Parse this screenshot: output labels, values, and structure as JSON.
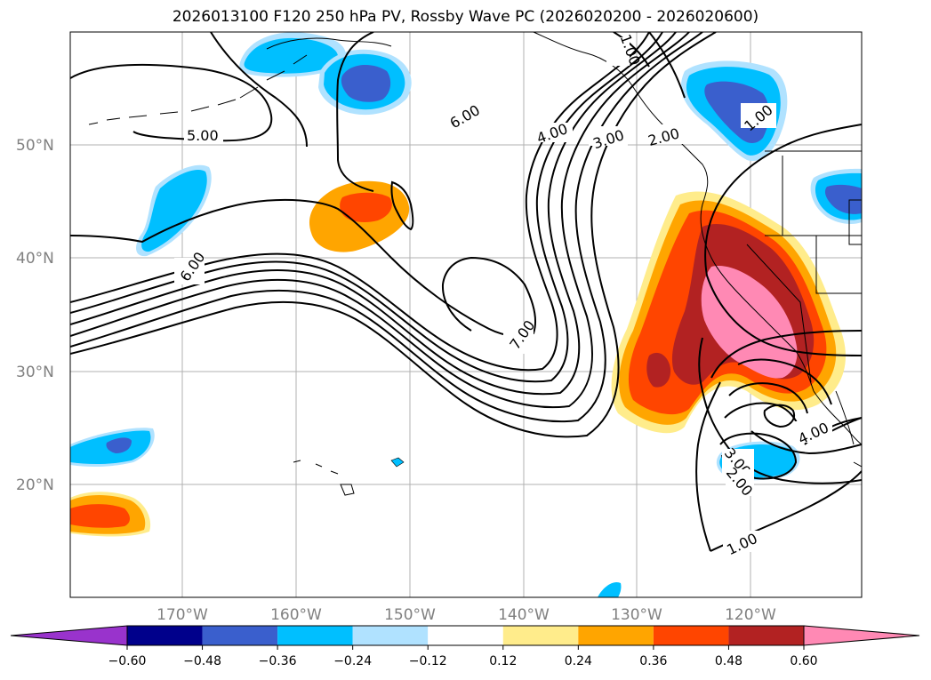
{
  "title": "2026013100 F120 250 hPa PV, Rossby Wave PC (2026020200 - 2026020600)",
  "lat_labels": [
    "50°N",
    "40°N",
    "30°N",
    "20°N"
  ],
  "lon_labels": [
    "170°W",
    "160°W",
    "150°W",
    "140°W",
    "130°W",
    "120°W"
  ],
  "colorbar": {
    "ticks": [
      "−0.60",
      "−0.48",
      "−0.36",
      "−0.24",
      "−0.12",
      "0.12",
      "0.24",
      "0.36",
      "0.48",
      "0.60"
    ],
    "colors": [
      "#9933cc",
      "#00008b",
      "#3a5fcd",
      "#00bfff",
      "#b0e2ff",
      "#ffffff",
      "#ffec8b",
      "#ffa500",
      "#ff4500",
      "#b22222",
      "#ff89b4"
    ]
  },
  "contour_labels": [
    "5.00",
    "6.00",
    "6.00",
    "4.00",
    "3.00",
    "2.00",
    "1.00",
    "7.00",
    "4.00",
    "3.00",
    "2.00",
    "1.00",
    "4.00",
    "1.00"
  ]
}
